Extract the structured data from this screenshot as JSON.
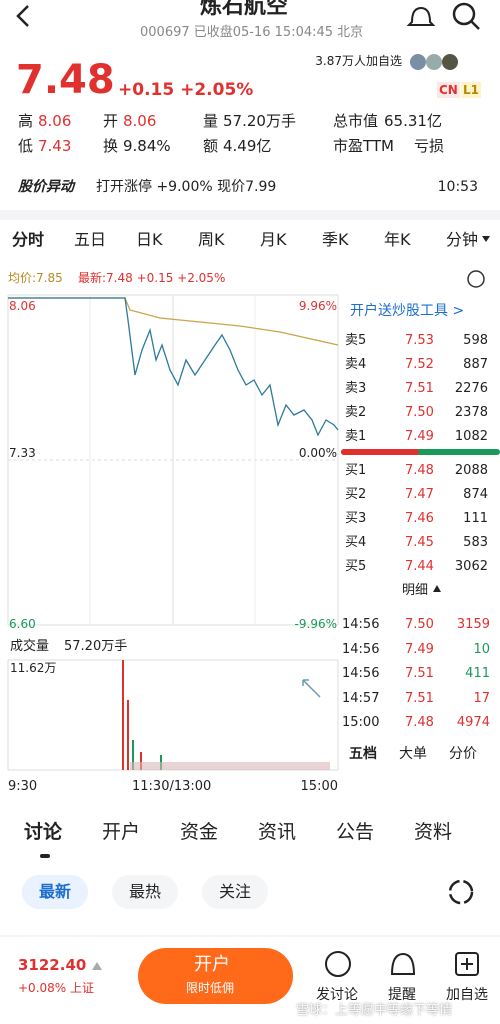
{
  "header": {
    "title": "炼石航空",
    "subtitle": "000697 已收盘05-16 15:04:45 北京"
  },
  "quote": {
    "price": "7.48",
    "change": "+0.15 +2.05%",
    "followers": "3.87万人加自选",
    "badges": [
      "CN",
      "L1"
    ]
  },
  "stats": [
    [
      [
        "高",
        "8.06"
      ],
      [
        "开",
        "8.06"
      ],
      [
        "量",
        "57.20万手"
      ],
      [
        "总市值",
        "65.31亿"
      ]
    ],
    [
      [
        "低",
        "7.43"
      ],
      [
        "换",
        "9.84%"
      ],
      [
        "额",
        "4.49亿"
      ],
      [
        "市盈TTM",
        "亏损"
      ]
    ]
  ],
  "alert": {
    "label": "股价异动",
    "text": "打开涨停 +9.00% 现价7.99",
    "time": "10:53"
  },
  "tabs": [
    "分时",
    "五日",
    "日K",
    "周K",
    "月K",
    "季K",
    "年K",
    "分钟"
  ],
  "chart": {
    "avg": "均价:7.85",
    "latest": "最新:7.48 +0.15 +2.05%",
    "price_labels": [
      "8.06",
      "7.33",
      "6.60"
    ],
    "pct_labels": [
      "9.96%",
      "0.00%",
      "-9.96%"
    ],
    "volume_title": "成交量",
    "volume_total": "57.20万手",
    "volume_max": "11.62万",
    "time_labels": [
      "9:30",
      "11:30/13:00",
      "15:00"
    ]
  },
  "orderbook": {
    "promo": "开户送炒股工具 >",
    "asks": [
      [
        "卖5",
        "7.53",
        "598"
      ],
      [
        "卖4",
        "7.52",
        "887"
      ],
      [
        "卖3",
        "7.51",
        "2276"
      ],
      [
        "卖2",
        "7.50",
        "2378"
      ],
      [
        "卖1",
        "7.49",
        "1082"
      ]
    ],
    "bids": [
      [
        "买1",
        "7.48",
        "2088"
      ],
      [
        "买2",
        "7.47",
        "874"
      ],
      [
        "买3",
        "7.46",
        "111"
      ],
      [
        "买4",
        "7.45",
        "583"
      ],
      [
        "买5",
        "7.44",
        "3062"
      ]
    ],
    "detail": "明细",
    "trades": [
      [
        "14:56",
        "7.50",
        "3159"
      ],
      [
        "14:56",
        "7.49",
        "10"
      ],
      [
        "14:56",
        "7.51",
        "411"
      ],
      [
        "14:57",
        "7.51",
        "17"
      ],
      [
        "15:00",
        "7.48",
        "4974"
      ]
    ],
    "tabs": [
      "五档",
      "大单",
      "分价"
    ]
  },
  "section_tabs": [
    "讨论",
    "开户",
    "资金",
    "资讯",
    "公告",
    "资料"
  ],
  "filters": [
    "最新",
    "最热",
    "关注"
  ],
  "footer": {
    "index": "3122.40",
    "index_change": "+0.08% 上证",
    "button": "开户",
    "button_sub": "限时低佣",
    "actions": [
      "发讨论",
      "提醒",
      "加自选"
    ],
    "watermark": "雪球：上等愿中等缘下等情"
  }
}
